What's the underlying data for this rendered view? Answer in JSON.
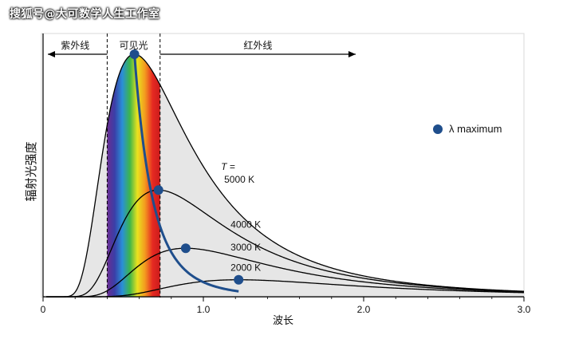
{
  "watermark": "搜狐号@大可数学人生工作室",
  "chart_data": {
    "type": "line",
    "title": "",
    "xlabel": "波长",
    "ylabel": "辐射光强度",
    "xlim": [
      0,
      3.0
    ],
    "x_ticks": [
      "0",
      "1.0",
      "2.0",
      "3.0"
    ],
    "x_tick_values": [
      0,
      1.0,
      2.0,
      3.0
    ],
    "y_ticks": [],
    "grid": false,
    "legend": {
      "marker_label": "λ maximum",
      "position": "right"
    },
    "regions": [
      {
        "label": "紫外线",
        "from": 0,
        "to": 0.4
      },
      {
        "label": "可见光",
        "from": 0.4,
        "to": 0.73
      },
      {
        "label": "红外线",
        "from": 0.73,
        "to": 1.95
      }
    ],
    "series": [
      {
        "name": "5000 K",
        "label_prefix": "T =",
        "peak_x": 0.57,
        "peak_rel": 1.0
      },
      {
        "name": "4000 K",
        "peak_x": 0.72,
        "peak_rel": 0.44
      },
      {
        "name": "3000 K",
        "peak_x": 0.89,
        "peak_rel": 0.2
      },
      {
        "name": "2000 K",
        "peak_x": 1.22,
        "peak_rel": 0.07
      }
    ],
    "lambda_max_points": [
      {
        "x": 0.57,
        "y": 1.0
      },
      {
        "x": 0.72,
        "y": 0.44
      },
      {
        "x": 0.89,
        "y": 0.2
      },
      {
        "x": 1.22,
        "y": 0.07
      }
    ],
    "colors": {
      "curve": "#000000",
      "lambda_max": "#1f4e8c",
      "fill": "#e6e6e6",
      "spectrum": [
        "#6a2d91",
        "#3a3fa8",
        "#2a8fd8",
        "#3db54a",
        "#e9e21f",
        "#f39a1f",
        "#e62a22",
        "#cc1b1b"
      ]
    }
  }
}
